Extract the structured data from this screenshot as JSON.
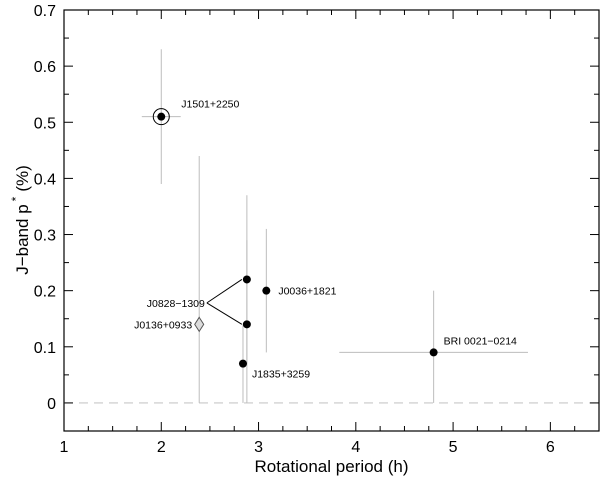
{
  "chart_data": {
    "type": "scatter",
    "title": "",
    "xlabel": "Rotational period (h)",
    "ylabel_main": "J−band p",
    "ylabel_sup": "*",
    "ylabel_unit": "(%)",
    "xlim": [
      1.0,
      6.5
    ],
    "ylim": [
      -0.05,
      0.7
    ],
    "x_ticks": [
      1,
      2,
      3,
      4,
      5,
      6
    ],
    "y_ticks": [
      0,
      0.1,
      0.2,
      0.3,
      0.4,
      0.5,
      0.6,
      0.7
    ],
    "x_tick_labels": [
      "1",
      "2",
      "3",
      "4",
      "5",
      "6"
    ],
    "y_tick_labels": [
      "0",
      "0.1",
      "0.2",
      "0.3",
      "0.4",
      "0.5",
      "0.6",
      "0.7"
    ],
    "zero_line": true,
    "grid": false,
    "points": [
      {
        "name": "J1501+2250",
        "x": 2.0,
        "y": 0.51,
        "y_lo": 0.39,
        "y_hi": 0.63,
        "x_lo": 1.8,
        "x_hi": 2.2,
        "marker": "circle-ringed",
        "label": "J1501+2250"
      },
      {
        "name": "J0828-1309-a",
        "x": 2.88,
        "y": 0.22,
        "y_lo": 0.07,
        "y_hi": 0.37,
        "marker": "circle",
        "label": ""
      },
      {
        "name": "J0828-1309-b",
        "x": 2.88,
        "y": 0.14,
        "y_lo": 0.0,
        "y_hi": 0.29,
        "marker": "circle",
        "label": ""
      },
      {
        "name": "J0036+1821",
        "x": 3.08,
        "y": 0.2,
        "y_lo": 0.09,
        "y_hi": 0.31,
        "marker": "circle",
        "label": "J0036+1821"
      },
      {
        "name": "J0136+0933",
        "x": 2.39,
        "y": 0.14,
        "y_lo": 0.0,
        "y_hi": 0.44,
        "marker": "diamond",
        "label": "J0136+0933"
      },
      {
        "name": "J1835+3259",
        "x": 2.84,
        "y": 0.07,
        "y_lo": 0.0,
        "y_hi": 0.14,
        "marker": "circle",
        "label": "J1835+3259"
      },
      {
        "name": "BRI 0021-0214",
        "x": 4.8,
        "y": 0.09,
        "y_lo": 0.0,
        "y_hi": 0.2,
        "x_lo": 3.83,
        "x_hi": 5.77,
        "marker": "circle",
        "label": "BRI 0021−0214"
      }
    ],
    "group_labels": [
      {
        "text": "J0828−1309",
        "targets": [
          "J0828-1309-a",
          "J0828-1309-b"
        ]
      }
    ]
  }
}
